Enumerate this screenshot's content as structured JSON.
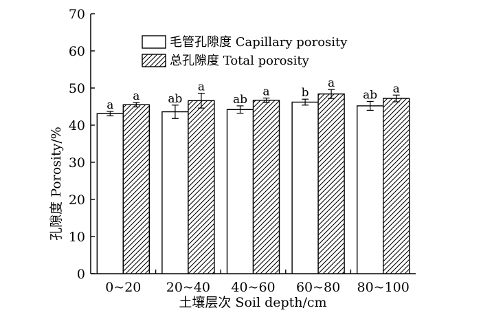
{
  "chart_data": {
    "type": "bar",
    "xlabel": "土壤层次 Soil depth/cm",
    "ylabel": "孔隙度 Porosity/%",
    "ylim": [
      0,
      70
    ],
    "yticks": [
      0,
      10,
      20,
      30,
      40,
      50,
      60,
      70
    ],
    "grid": false,
    "legend_position": "top-center",
    "categories": [
      "0~20",
      "20~40",
      "40~60",
      "60~80",
      "80~100"
    ],
    "series": [
      {
        "name": "毛管孔隙度 Capillary porosity",
        "fill": "solid-white",
        "values": [
          43.1,
          43.6,
          44.2,
          46.2,
          45.2
        ],
        "errors": [
          0.6,
          1.8,
          1.0,
          0.8,
          1.2
        ],
        "letters": [
          "a",
          "ab",
          "ab",
          "b",
          "ab"
        ]
      },
      {
        "name": "总孔隙度 Total porosity",
        "fill": "diagonal-hatch",
        "values": [
          45.5,
          46.6,
          46.7,
          48.4,
          47.2
        ],
        "errors": [
          0.6,
          2.0,
          0.6,
          1.2,
          0.9
        ],
        "letters": [
          "a",
          "a",
          "a",
          "a",
          "a"
        ]
      }
    ]
  }
}
